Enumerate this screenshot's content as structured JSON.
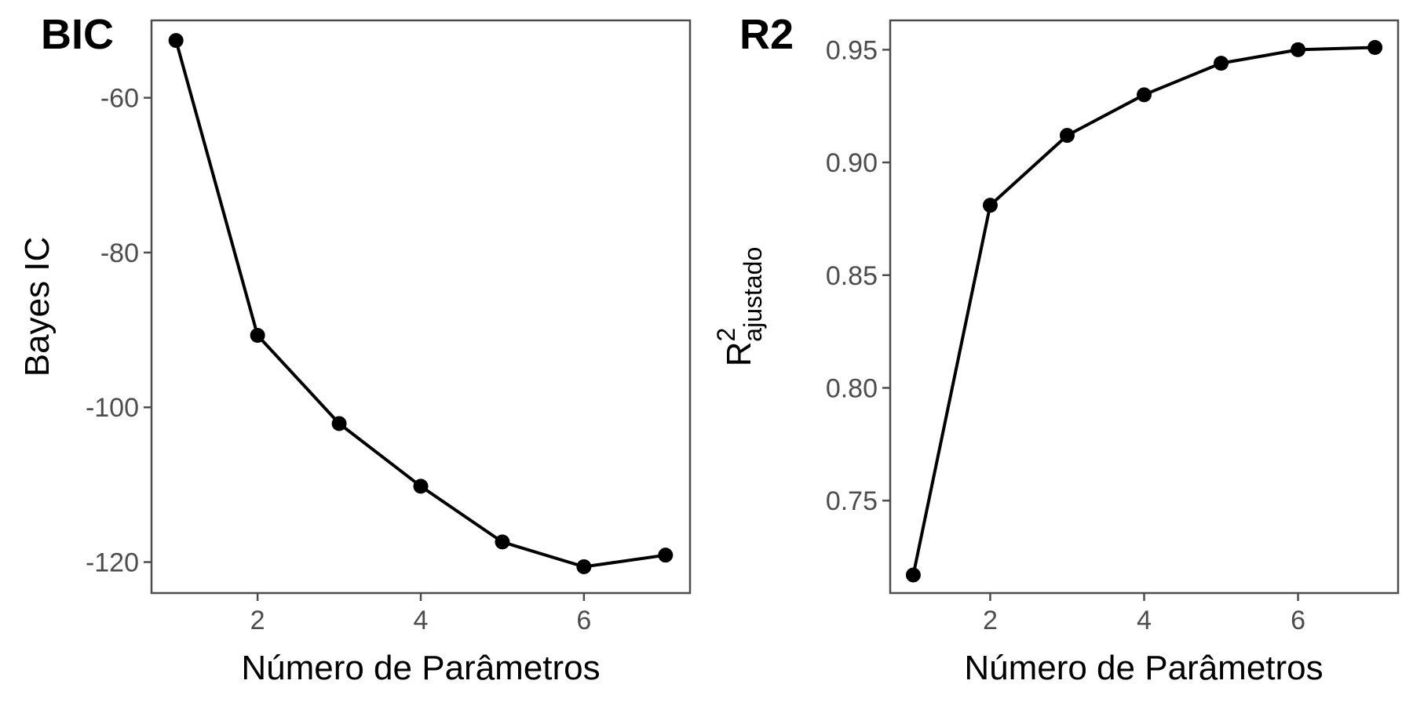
{
  "chart_data": [
    {
      "type": "line",
      "title": "BIC",
      "xlabel": "Número de Parâmetros",
      "ylabel": "Bayes IC",
      "x": [
        1,
        2,
        3,
        4,
        5,
        6,
        7
      ],
      "series": [
        {
          "values": [
            -52.6,
            -90.7,
            -102.1,
            -110.2,
            -117.4,
            -120.6,
            -119.1
          ]
        }
      ],
      "xlim": [
        0.7,
        7.3
      ],
      "ylim": [
        -124,
        -50
      ],
      "xticks": [
        2,
        4,
        6
      ],
      "yticks": [
        -60,
        -80,
        -100,
        -120
      ],
      "grid": false,
      "line_color": "#000000",
      "frame_color": "#4d4d4d"
    },
    {
      "type": "line",
      "title": "R2",
      "xlabel": "Número de Parâmetros",
      "ylabel_main": "R",
      "ylabel_sup": "2",
      "ylabel_sub": "ajustado",
      "x": [
        1,
        2,
        3,
        4,
        5,
        6,
        7
      ],
      "series": [
        {
          "values": [
            0.717,
            0.881,
            0.912,
            0.93,
            0.944,
            0.95,
            0.951
          ]
        }
      ],
      "xlim": [
        0.7,
        7.3
      ],
      "ylim": [
        0.709,
        0.963
      ],
      "xticks": [
        2,
        4,
        6
      ],
      "yticks": [
        0.75,
        0.8,
        0.85,
        0.9,
        0.95
      ],
      "ytick_labels": [
        "0.75",
        "0.80",
        "0.85",
        "0.90",
        "0.95"
      ],
      "grid": false,
      "line_color": "#000000",
      "frame_color": "#4d4d4d"
    }
  ]
}
